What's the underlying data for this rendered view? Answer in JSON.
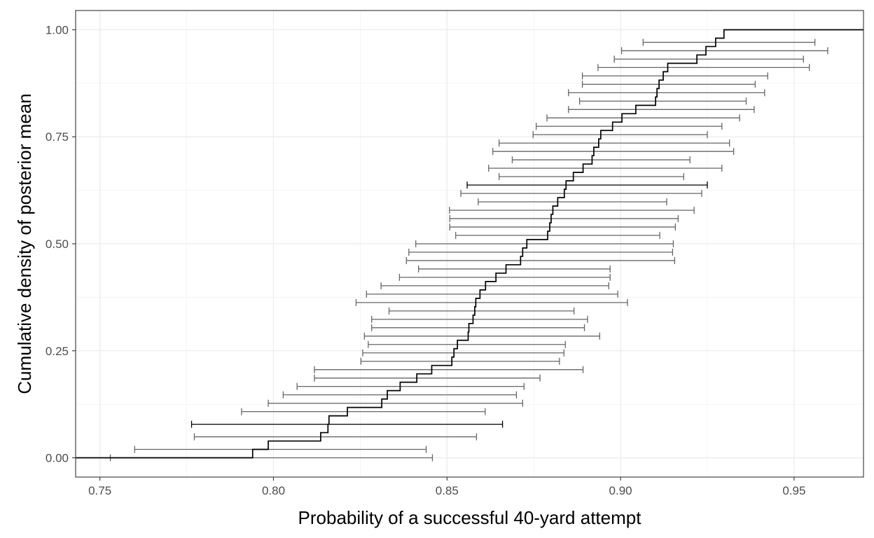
{
  "chart_data": {
    "type": "ecdf_with_error_bars",
    "xlabel": "Probability of a successful 40-yard attempt",
    "ylabel": "Cumulative density of posterior mean",
    "xlim": [
      0.743,
      0.97
    ],
    "ylim": [
      -0.045,
      1.045
    ],
    "x_ticks": [
      {
        "value": 0.75,
        "label": "0.75"
      },
      {
        "value": 0.8,
        "label": "0.80"
      },
      {
        "value": 0.85,
        "label": "0.85"
      },
      {
        "value": 0.9,
        "label": "0.90"
      },
      {
        "value": 0.95,
        "label": "0.95"
      }
    ],
    "y_ticks": [
      {
        "value": 0.0,
        "label": "0.00"
      },
      {
        "value": 0.25,
        "label": "0.25"
      },
      {
        "value": 0.5,
        "label": "0.50"
      },
      {
        "value": 0.75,
        "label": "0.75"
      },
      {
        "value": 1.0,
        "label": "1.00"
      }
    ],
    "grid": true,
    "legend": "none",
    "ecdf_line_color": "#000000",
    "errorbar_color": "#666666",
    "highlight_errorbar_color": "#000000",
    "ecdf_steps": [
      [
        0.794,
        0.0196
      ],
      [
        0.7985,
        0.0392
      ],
      [
        0.8136,
        0.0588
      ],
      [
        0.8157,
        0.0784
      ],
      [
        0.816,
        0.098
      ],
      [
        0.8213,
        0.1176
      ],
      [
        0.8312,
        0.1373
      ],
      [
        0.8328,
        0.1569
      ],
      [
        0.8365,
        0.1765
      ],
      [
        0.8413,
        0.1961
      ],
      [
        0.8456,
        0.2157
      ],
      [
        0.8514,
        0.2353
      ],
      [
        0.852,
        0.2549
      ],
      [
        0.853,
        0.2745
      ],
      [
        0.8561,
        0.2941
      ],
      [
        0.8563,
        0.3137
      ],
      [
        0.8575,
        0.3333
      ],
      [
        0.858,
        0.3529
      ],
      [
        0.8583,
        0.3725
      ],
      [
        0.8595,
        0.3922
      ],
      [
        0.8611,
        0.4118
      ],
      [
        0.8641,
        0.4314
      ],
      [
        0.867,
        0.451
      ],
      [
        0.8712,
        0.4706
      ],
      [
        0.8718,
        0.4902
      ],
      [
        0.873,
        0.5098
      ],
      [
        0.879,
        0.5294
      ],
      [
        0.8796,
        0.549
      ],
      [
        0.88,
        0.5686
      ],
      [
        0.8805,
        0.5882
      ],
      [
        0.8819,
        0.6078
      ],
      [
        0.8838,
        0.6275
      ],
      [
        0.8843,
        0.6471
      ],
      [
        0.8864,
        0.6667
      ],
      [
        0.8892,
        0.6863
      ],
      [
        0.8918,
        0.7059
      ],
      [
        0.8923,
        0.7255
      ],
      [
        0.8937,
        0.7451
      ],
      [
        0.8943,
        0.7647
      ],
      [
        0.8977,
        0.7843
      ],
      [
        0.9004,
        0.8039
      ],
      [
        0.9044,
        0.8235
      ],
      [
        0.9101,
        0.8431
      ],
      [
        0.9105,
        0.8627
      ],
      [
        0.9111,
        0.8824
      ],
      [
        0.9123,
        0.902
      ],
      [
        0.9136,
        0.9216
      ],
      [
        0.922,
        0.9412
      ],
      [
        0.9246,
        0.9608
      ],
      [
        0.9274,
        0.9804
      ],
      [
        0.9298,
        1.0
      ]
    ],
    "error_bars": [
      {
        "y": 0.0,
        "lo": 0.753,
        "hi": 0.8458
      },
      {
        "y": 0.0196,
        "lo": 0.76,
        "hi": 0.844
      },
      {
        "y": 0.049,
        "lo": 0.7772,
        "hi": 0.8585
      },
      {
        "y": 0.0784,
        "lo": 0.7764,
        "hi": 0.866,
        "highlight": true
      },
      {
        "y": 0.1078,
        "lo": 0.7908,
        "hi": 0.861
      },
      {
        "y": 0.1275,
        "lo": 0.7985,
        "hi": 0.8718
      },
      {
        "y": 0.1471,
        "lo": 0.8028,
        "hi": 0.87
      },
      {
        "y": 0.1667,
        "lo": 0.8068,
        "hi": 0.8722
      },
      {
        "y": 0.1863,
        "lo": 0.8118,
        "hi": 0.8768
      },
      {
        "y": 0.2059,
        "lo": 0.8118,
        "hi": 0.8892
      },
      {
        "y": 0.2255,
        "lo": 0.8252,
        "hi": 0.8824
      },
      {
        "y": 0.2451,
        "lo": 0.8257,
        "hi": 0.8837
      },
      {
        "y": 0.2647,
        "lo": 0.8273,
        "hi": 0.8841
      },
      {
        "y": 0.2843,
        "lo": 0.8262,
        "hi": 0.894
      },
      {
        "y": 0.3039,
        "lo": 0.8283,
        "hi": 0.8896
      },
      {
        "y": 0.3235,
        "lo": 0.8283,
        "hi": 0.8905
      },
      {
        "y": 0.3431,
        "lo": 0.8333,
        "hi": 0.8866
      },
      {
        "y": 0.3627,
        "lo": 0.8238,
        "hi": 0.902
      },
      {
        "y": 0.3824,
        "lo": 0.8268,
        "hi": 0.8992
      },
      {
        "y": 0.402,
        "lo": 0.831,
        "hi": 0.8966
      },
      {
        "y": 0.4216,
        "lo": 0.8363,
        "hi": 0.897
      },
      {
        "y": 0.4412,
        "lo": 0.8418,
        "hi": 0.897
      },
      {
        "y": 0.4608,
        "lo": 0.8383,
        "hi": 0.9156
      },
      {
        "y": 0.4804,
        "lo": 0.839,
        "hi": 0.915
      },
      {
        "y": 0.5,
        "lo": 0.841,
        "hi": 0.9152
      },
      {
        "y": 0.5196,
        "lo": 0.8525,
        "hi": 0.9113
      },
      {
        "y": 0.5392,
        "lo": 0.8508,
        "hi": 0.9158
      },
      {
        "y": 0.5588,
        "lo": 0.8508,
        "hi": 0.9166
      },
      {
        "y": 0.5784,
        "lo": 0.8507,
        "hi": 0.9212
      },
      {
        "y": 0.598,
        "lo": 0.859,
        "hi": 0.9133
      },
      {
        "y": 0.6176,
        "lo": 0.854,
        "hi": 0.9234
      },
      {
        "y": 0.6373,
        "lo": 0.8558,
        "hi": 0.925,
        "highlight": true
      },
      {
        "y": 0.6569,
        "lo": 0.865,
        "hi": 0.9182
      },
      {
        "y": 0.6765,
        "lo": 0.862,
        "hi": 0.9292
      },
      {
        "y": 0.6961,
        "lo": 0.8688,
        "hi": 0.92
      },
      {
        "y": 0.7157,
        "lo": 0.8632,
        "hi": 0.9326
      },
      {
        "y": 0.7353,
        "lo": 0.865,
        "hi": 0.9314
      },
      {
        "y": 0.7549,
        "lo": 0.8748,
        "hi": 0.925
      },
      {
        "y": 0.7745,
        "lo": 0.8757,
        "hi": 0.9292
      },
      {
        "y": 0.7941,
        "lo": 0.8788,
        "hi": 0.9343
      },
      {
        "y": 0.8137,
        "lo": 0.885,
        "hi": 0.9385
      },
      {
        "y": 0.8333,
        "lo": 0.8882,
        "hi": 0.9362
      },
      {
        "y": 0.8529,
        "lo": 0.885,
        "hi": 0.9415
      },
      {
        "y": 0.8725,
        "lo": 0.889,
        "hi": 0.9388
      },
      {
        "y": 0.8922,
        "lo": 0.889,
        "hi": 0.9424
      },
      {
        "y": 0.9118,
        "lo": 0.8935,
        "hi": 0.9544
      },
      {
        "y": 0.9314,
        "lo": 0.8982,
        "hi": 0.9527
      },
      {
        "y": 0.951,
        "lo": 0.9003,
        "hi": 0.9597
      },
      {
        "y": 0.9706,
        "lo": 0.9065,
        "hi": 0.956
      }
    ]
  }
}
